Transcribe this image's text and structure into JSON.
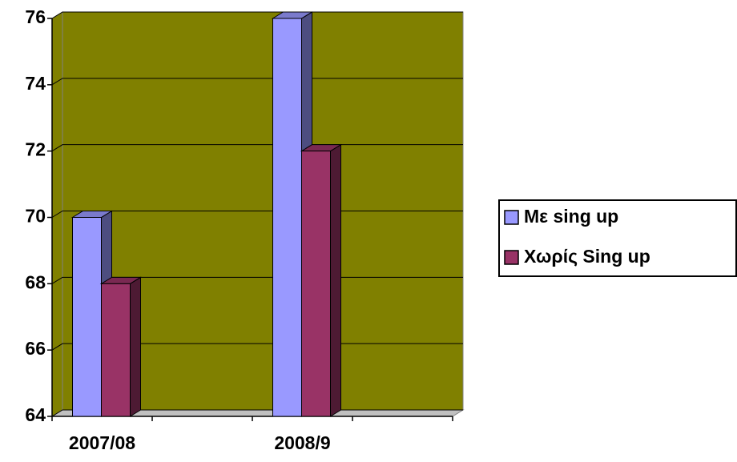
{
  "chart_data": {
    "type": "bar3d",
    "categories": [
      "2007/08",
      null,
      "2008/9",
      null
    ],
    "series": [
      {
        "name": "Με sing up",
        "color": "#9999ff",
        "values": [
          70,
          null,
          76,
          null
        ]
      },
      {
        "name": "Χωρίς Sing up",
        "color": "#993366",
        "values": [
          68,
          null,
          72,
          null
        ]
      }
    ],
    "ylim": [
      64,
      76
    ],
    "yticks": [
      64,
      66,
      68,
      70,
      72,
      74,
      76
    ],
    "grid": true,
    "legend": "right",
    "wall_color": "#808000"
  }
}
